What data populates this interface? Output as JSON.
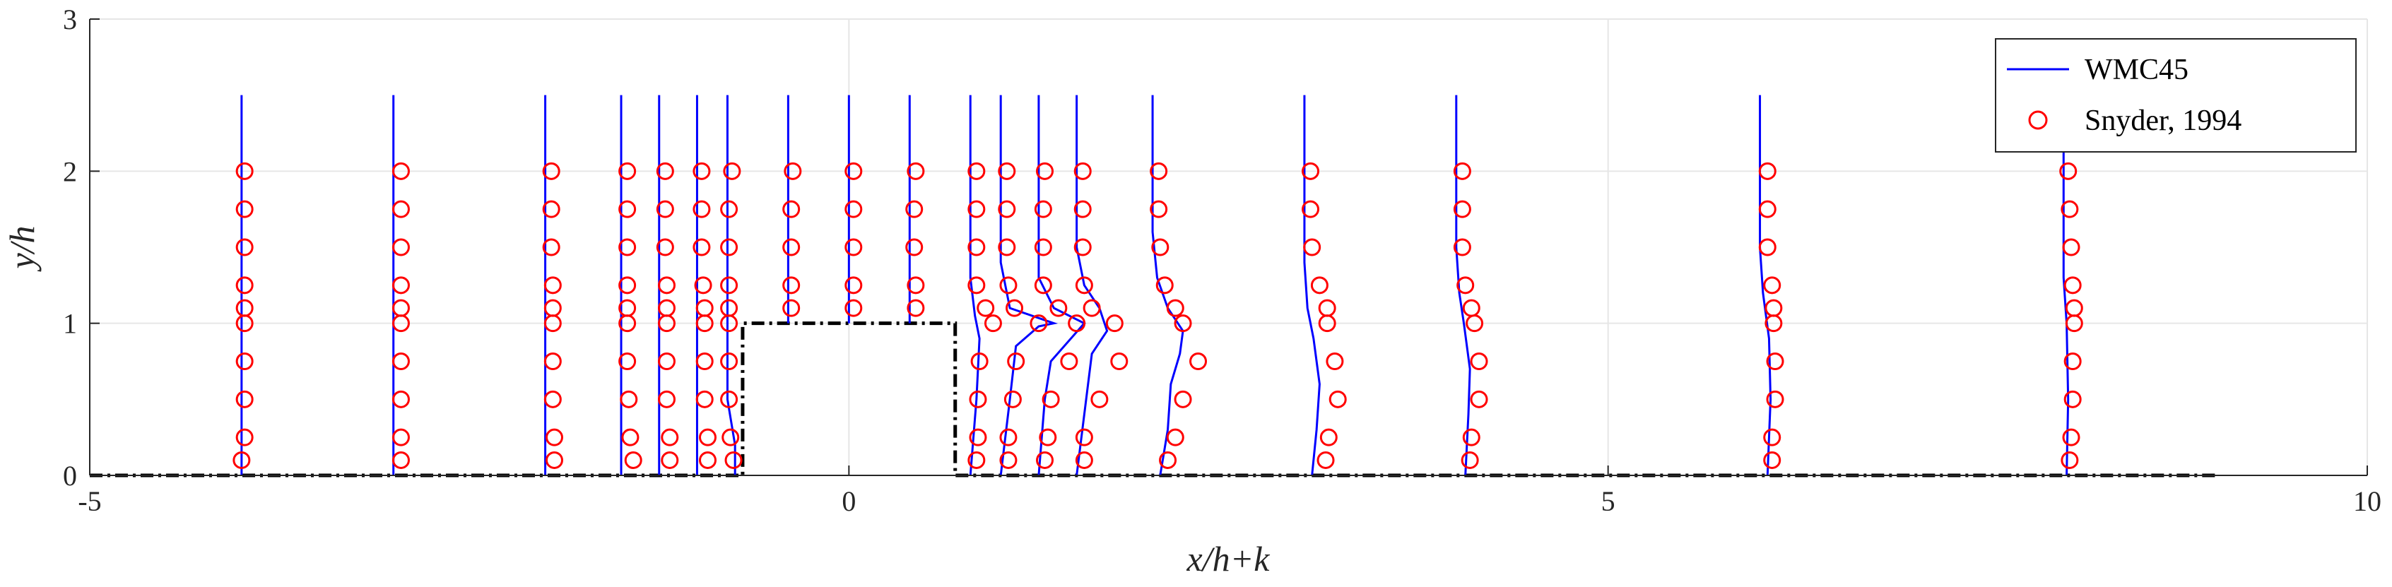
{
  "chart_data": {
    "type": "line",
    "xlabel": "x/h+k",
    "ylabel": "y/h",
    "xlim": [
      -5,
      10
    ],
    "ylim": [
      0,
      3
    ],
    "xticks": [
      -5,
      0,
      5,
      10
    ],
    "yticks": [
      0,
      1,
      2,
      3
    ],
    "grid": true,
    "legend_position": "top-right",
    "legend": [
      {
        "label": "WMC45",
        "style": "line",
        "color": "#0000ff"
      },
      {
        "label": "Snyder, 1994",
        "style": "circle",
        "color": "#ff0000"
      }
    ],
    "colors": {
      "model": "#0000ff",
      "experiment": "#ff0000",
      "geometry": "#000000",
      "grid": "#e6e6e6"
    },
    "hill_outline": {
      "x": [
        -5,
        -0.7,
        -0.7,
        0.7,
        0.7,
        9
      ],
      "y": [
        0,
        0,
        1,
        1,
        0,
        0
      ]
    },
    "profiles": [
      {
        "x0": -4,
        "line": [
          [
            0,
            0
          ],
          [
            0,
            2.5
          ]
        ],
        "points": [
          [
            0,
            0.1
          ],
          [
            0.02,
            0.25
          ],
          [
            0.02,
            0.5
          ],
          [
            0.02,
            0.75
          ],
          [
            0.02,
            1.0
          ],
          [
            0.02,
            1.1
          ],
          [
            0.02,
            1.25
          ],
          [
            0.02,
            1.5
          ],
          [
            0.02,
            1.75
          ],
          [
            0.02,
            2.0
          ]
        ]
      },
      {
        "x0": -3,
        "line": [
          [
            0,
            0
          ],
          [
            0,
            2.5
          ]
        ],
        "points": [
          [
            0.05,
            0.1
          ],
          [
            0.05,
            0.25
          ],
          [
            0.05,
            0.5
          ],
          [
            0.05,
            0.75
          ],
          [
            0.05,
            1.0
          ],
          [
            0.05,
            1.1
          ],
          [
            0.05,
            1.25
          ],
          [
            0.05,
            1.5
          ],
          [
            0.05,
            1.75
          ],
          [
            0.05,
            2.0
          ]
        ]
      },
      {
        "x0": -2,
        "line": [
          [
            0,
            0
          ],
          [
            0,
            2.5
          ]
        ],
        "points": [
          [
            0.06,
            0.1
          ],
          [
            0.06,
            0.25
          ],
          [
            0.05,
            0.5
          ],
          [
            0.05,
            0.75
          ],
          [
            0.05,
            1.0
          ],
          [
            0.05,
            1.1
          ],
          [
            0.05,
            1.25
          ],
          [
            0.04,
            1.5
          ],
          [
            0.04,
            1.75
          ],
          [
            0.04,
            2.0
          ]
        ]
      },
      {
        "x0": -1.5,
        "line": [
          [
            0,
            0
          ],
          [
            0,
            2.5
          ]
        ],
        "points": [
          [
            0.08,
            0.1
          ],
          [
            0.06,
            0.25
          ],
          [
            0.05,
            0.5
          ],
          [
            0.04,
            0.75
          ],
          [
            0.04,
            1.0
          ],
          [
            0.04,
            1.1
          ],
          [
            0.04,
            1.25
          ],
          [
            0.04,
            1.5
          ],
          [
            0.04,
            1.75
          ],
          [
            0.04,
            2.0
          ]
        ]
      },
      {
        "x0": -1.25,
        "line": [
          [
            0,
            0
          ],
          [
            0,
            2.5
          ]
        ],
        "points": [
          [
            0.07,
            0.1
          ],
          [
            0.07,
            0.25
          ],
          [
            0.05,
            0.5
          ],
          [
            0.05,
            0.75
          ],
          [
            0.05,
            1.0
          ],
          [
            0.05,
            1.1
          ],
          [
            0.05,
            1.25
          ],
          [
            0.04,
            1.5
          ],
          [
            0.04,
            1.75
          ],
          [
            0.04,
            2.0
          ]
        ]
      },
      {
        "x0": -1,
        "line": [
          [
            0,
            0
          ],
          [
            0,
            2.5
          ]
        ],
        "points": [
          [
            0.07,
            0.1
          ],
          [
            0.07,
            0.25
          ],
          [
            0.05,
            0.5
          ],
          [
            0.05,
            0.75
          ],
          [
            0.05,
            1.0
          ],
          [
            0.05,
            1.1
          ],
          [
            0.04,
            1.25
          ],
          [
            0.03,
            1.5
          ],
          [
            0.03,
            1.75
          ],
          [
            0.03,
            2.0
          ]
        ]
      },
      {
        "x0": -0.8,
        "line": [
          [
            0.05,
            0
          ],
          [
            0.05,
            0.2
          ],
          [
            0,
            0.5
          ],
          [
            0,
            2.5
          ]
        ],
        "points": [
          [
            0.04,
            0.1
          ],
          [
            0.02,
            0.25
          ],
          [
            0.01,
            0.5
          ],
          [
            0.01,
            0.75
          ],
          [
            0.01,
            1.0
          ],
          [
            0.01,
            1.1
          ],
          [
            0.01,
            1.25
          ],
          [
            0.01,
            1.5
          ],
          [
            0.01,
            1.75
          ],
          [
            0.03,
            2.0
          ]
        ]
      },
      {
        "x0": -0.4,
        "line": [
          [
            0,
            1
          ],
          [
            0,
            2.5
          ]
        ],
        "points": [
          [
            0.02,
            1.1
          ],
          [
            0.02,
            1.25
          ],
          [
            0.02,
            1.5
          ],
          [
            0.02,
            1.75
          ],
          [
            0.03,
            2.0
          ]
        ]
      },
      {
        "x0": 0,
        "line": [
          [
            0,
            1
          ],
          [
            0,
            2.5
          ]
        ],
        "points": [
          [
            0.03,
            1.1
          ],
          [
            0.03,
            1.25
          ],
          [
            0.03,
            1.5
          ],
          [
            0.03,
            1.75
          ],
          [
            0.03,
            2.0
          ]
        ]
      },
      {
        "x0": 0.4,
        "line": [
          [
            0,
            1
          ],
          [
            0,
            2.5
          ]
        ],
        "points": [
          [
            0.04,
            1.1
          ],
          [
            0.04,
            1.25
          ],
          [
            0.03,
            1.5
          ],
          [
            0.03,
            1.75
          ],
          [
            0.04,
            2.0
          ]
        ]
      },
      {
        "x0": 0.8,
        "line": [
          [
            0,
            0
          ],
          [
            0.04,
            0.5
          ],
          [
            0.06,
            0.9
          ],
          [
            0.03,
            1.05
          ],
          [
            0,
            1.3
          ],
          [
            0,
            2.5
          ]
        ],
        "points": [
          [
            0.04,
            0.1
          ],
          [
            0.05,
            0.25
          ],
          [
            0.05,
            0.5
          ],
          [
            0.06,
            0.75
          ],
          [
            0.15,
            1.0
          ],
          [
            0.1,
            1.1
          ],
          [
            0.04,
            1.25
          ],
          [
            0.04,
            1.5
          ],
          [
            0.04,
            1.75
          ],
          [
            0.04,
            2.0
          ]
        ]
      },
      {
        "x0": 1,
        "line": [
          [
            0,
            0
          ],
          [
            0.06,
            0.5
          ],
          [
            0.1,
            0.85
          ],
          [
            0.25,
            0.98
          ],
          [
            0.35,
            1.0
          ],
          [
            0.06,
            1.1
          ],
          [
            0,
            1.4
          ],
          [
            0,
            2.5
          ]
        ],
        "points": [
          [
            0.05,
            0.1
          ],
          [
            0.05,
            0.25
          ],
          [
            0.08,
            0.5
          ],
          [
            0.1,
            0.75
          ],
          [
            0.25,
            1.0
          ],
          [
            0.09,
            1.1
          ],
          [
            0.05,
            1.25
          ],
          [
            0.04,
            1.5
          ],
          [
            0.04,
            1.75
          ],
          [
            0.04,
            2.0
          ]
        ]
      },
      {
        "x0": 1.25,
        "line": [
          [
            0,
            0
          ],
          [
            0.04,
            0.5
          ],
          [
            0.08,
            0.75
          ],
          [
            0.3,
            1.0
          ],
          [
            0.1,
            1.1
          ],
          [
            0,
            1.3
          ],
          [
            0,
            2.5
          ]
        ],
        "points": [
          [
            0.04,
            0.1
          ],
          [
            0.06,
            0.25
          ],
          [
            0.08,
            0.5
          ],
          [
            0.2,
            0.75
          ],
          [
            0.25,
            1.0
          ],
          [
            0.13,
            1.1
          ],
          [
            0.03,
            1.25
          ],
          [
            0.03,
            1.5
          ],
          [
            0.03,
            1.75
          ],
          [
            0.04,
            2.0
          ]
        ]
      },
      {
        "x0": 1.5,
        "line": [
          [
            0,
            0
          ],
          [
            0.05,
            0.4
          ],
          [
            0.1,
            0.8
          ],
          [
            0.2,
            0.95
          ],
          [
            0.15,
            1.1
          ],
          [
            0.05,
            1.25
          ],
          [
            0,
            1.5
          ],
          [
            0,
            2.5
          ]
        ],
        "points": [
          [
            0.05,
            0.1
          ],
          [
            0.05,
            0.25
          ],
          [
            0.15,
            0.5
          ],
          [
            0.28,
            0.75
          ],
          [
            0.25,
            1.0
          ],
          [
            0.1,
            1.1
          ],
          [
            0.05,
            1.25
          ],
          [
            0.04,
            1.5
          ],
          [
            0.04,
            1.75
          ],
          [
            0.04,
            2.0
          ]
        ]
      },
      {
        "x0": 2,
        "line": [
          [
            0.05,
            0
          ],
          [
            0.1,
            0.3
          ],
          [
            0.12,
            0.6
          ],
          [
            0.18,
            0.8
          ],
          [
            0.2,
            0.95
          ],
          [
            0.1,
            1.1
          ],
          [
            0.03,
            1.3
          ],
          [
            0,
            1.6
          ],
          [
            0,
            2.5
          ]
        ],
        "points": [
          [
            0.1,
            0.1
          ],
          [
            0.15,
            0.25
          ],
          [
            0.2,
            0.5
          ],
          [
            0.3,
            0.75
          ],
          [
            0.2,
            1.0
          ],
          [
            0.15,
            1.1
          ],
          [
            0.08,
            1.25
          ],
          [
            0.05,
            1.5
          ],
          [
            0.04,
            1.75
          ],
          [
            0.04,
            2.0
          ]
        ]
      },
      {
        "x0": 3,
        "line": [
          [
            0.05,
            0
          ],
          [
            0.08,
            0.3
          ],
          [
            0.1,
            0.6
          ],
          [
            0.06,
            0.9
          ],
          [
            0.02,
            1.1
          ],
          [
            0,
            1.4
          ],
          [
            0,
            2.5
          ]
        ],
        "points": [
          [
            0.14,
            0.1
          ],
          [
            0.16,
            0.25
          ],
          [
            0.22,
            0.5
          ],
          [
            0.2,
            0.75
          ],
          [
            0.15,
            1.0
          ],
          [
            0.15,
            1.1
          ],
          [
            0.1,
            1.25
          ],
          [
            0.05,
            1.5
          ],
          [
            0.04,
            1.75
          ],
          [
            0.04,
            2.0
          ]
        ]
      },
      {
        "x0": 4,
        "line": [
          [
            0.06,
            0
          ],
          [
            0.08,
            0.4
          ],
          [
            0.09,
            0.7
          ],
          [
            0.05,
            1.0
          ],
          [
            0.02,
            1.2
          ],
          [
            0,
            1.5
          ],
          [
            0,
            2.5
          ]
        ],
        "points": [
          [
            0.09,
            0.1
          ],
          [
            0.1,
            0.25
          ],
          [
            0.15,
            0.5
          ],
          [
            0.15,
            0.75
          ],
          [
            0.12,
            1.0
          ],
          [
            0.1,
            1.1
          ],
          [
            0.06,
            1.25
          ],
          [
            0.04,
            1.5
          ],
          [
            0.04,
            1.75
          ],
          [
            0.04,
            2.0
          ]
        ]
      },
      {
        "x0": 6,
        "line": [
          [
            0.05,
            0
          ],
          [
            0.07,
            0.5
          ],
          [
            0.06,
            0.9
          ],
          [
            0.04,
            1.05
          ],
          [
            0.02,
            1.2
          ],
          [
            0,
            1.5
          ],
          [
            0,
            2.5
          ]
        ],
        "points": [
          [
            0.08,
            0.1
          ],
          [
            0.08,
            0.25
          ],
          [
            0.1,
            0.5
          ],
          [
            0.1,
            0.75
          ],
          [
            0.09,
            1.0
          ],
          [
            0.09,
            1.1
          ],
          [
            0.08,
            1.25
          ],
          [
            0.05,
            1.5
          ],
          [
            0.05,
            1.75
          ],
          [
            0.05,
            2.0
          ]
        ]
      },
      {
        "x0": 8,
        "line": [
          [
            0.02,
            0
          ],
          [
            0.03,
            0.5
          ],
          [
            0.02,
            1.0
          ],
          [
            0,
            1.3
          ],
          [
            0,
            2.5
          ]
        ],
        "points": [
          [
            0.04,
            0.1
          ],
          [
            0.05,
            0.25
          ],
          [
            0.06,
            0.5
          ],
          [
            0.06,
            0.75
          ],
          [
            0.07,
            1.0
          ],
          [
            0.07,
            1.1
          ],
          [
            0.06,
            1.25
          ],
          [
            0.05,
            1.5
          ],
          [
            0.04,
            1.75
          ],
          [
            0.03,
            2.0
          ]
        ]
      }
    ]
  }
}
